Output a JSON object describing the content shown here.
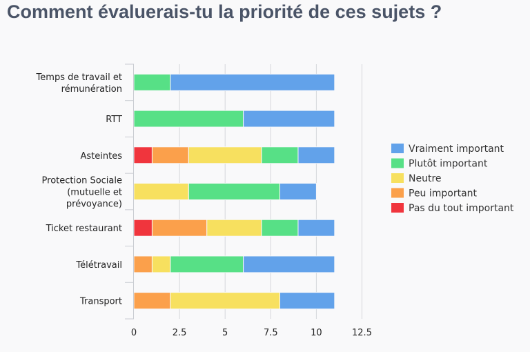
{
  "chart_data": {
    "type": "bar",
    "orientation": "horizontal",
    "stacked": true,
    "title": "Comment évaluerais-tu la priorité de ces sujets ?",
    "categories": [
      [
        "Temps de travail et",
        "rémunération"
      ],
      [
        "RTT"
      ],
      [
        "Asteintes"
      ],
      [
        "Protection Sociale",
        "(mutuelle et",
        "prévoyance)"
      ],
      [
        "Ticket restaurant"
      ],
      [
        "Télétravail"
      ],
      [
        "Transport"
      ]
    ],
    "series": [
      {
        "name": "Pas du tout important",
        "color": "#f0353d",
        "values": [
          0,
          0,
          1,
          0,
          1,
          0,
          0
        ]
      },
      {
        "name": "Peu important",
        "color": "#fba04b",
        "values": [
          0,
          0,
          2,
          0,
          3,
          1,
          2
        ]
      },
      {
        "name": "Neutre",
        "color": "#f7e05f",
        "values": [
          0,
          0,
          4,
          3,
          3,
          1,
          6
        ]
      },
      {
        "name": "Plutôt important",
        "color": "#57e086",
        "values": [
          2,
          6,
          2,
          5,
          2,
          4,
          0
        ]
      },
      {
        "name": "Vraiment important",
        "color": "#62a2ea",
        "values": [
          9,
          5,
          2,
          2,
          2,
          5,
          3
        ]
      }
    ],
    "legend_order": [
      "Vraiment important",
      "Plutôt important",
      "Neutre",
      "Peu important",
      "Pas du tout important"
    ],
    "x_ticks": [
      "0",
      "2.5",
      "5",
      "7.5",
      "10",
      "12.5"
    ],
    "x_tick_values": [
      0,
      2.5,
      5,
      7.5,
      10,
      12.5
    ],
    "xlim": [
      0,
      12.5
    ],
    "grid": true,
    "legend_position": "right"
  }
}
